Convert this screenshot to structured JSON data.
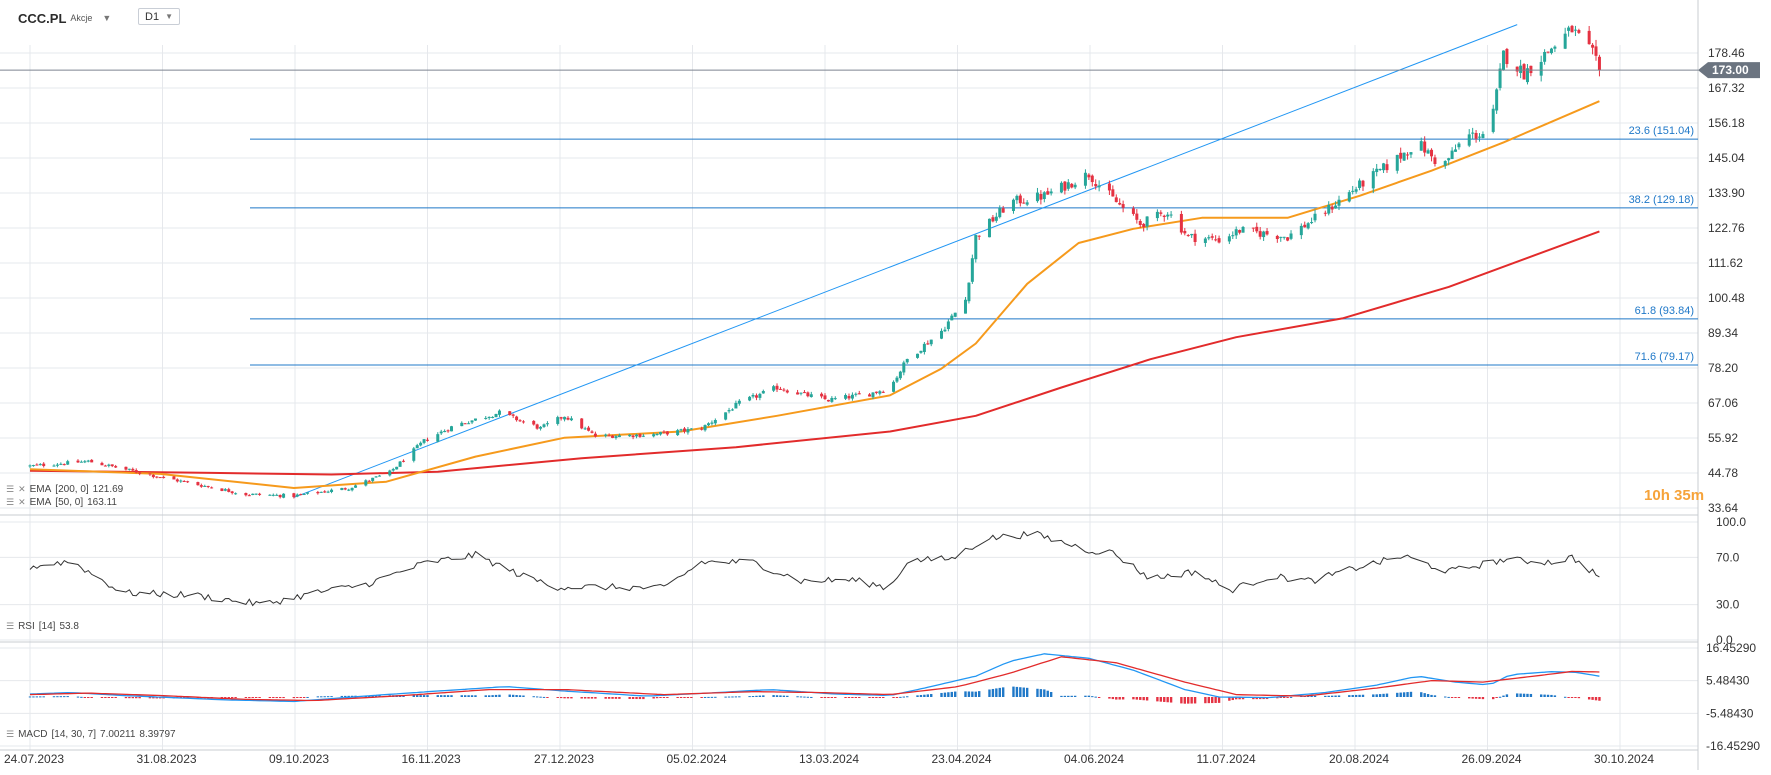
{
  "header": {
    "symbol": "CCC.PL",
    "instrument_type": "Akcje",
    "timeframe": "D1",
    "symbol_caret_icon": "chevron-down-icon",
    "timeframe_caret_icon": "chevron-down-icon"
  },
  "colors": {
    "up": "#26a69a",
    "down": "#e53242",
    "ema200": "#e22b2b",
    "ema50": "#f69a1c",
    "trendline": "#2196f3",
    "fib": "#1f78c8",
    "fib_label": "#1f78c8",
    "rsi": "#333333",
    "macd_line": "#2196f3",
    "signal_line": "#e22b2b",
    "hist_up": "#1f78c8",
    "hist_down": "#e53242",
    "price_tag_bg": "#6b7480",
    "grid": "#e6e8ec"
  },
  "countdown": {
    "hours": "10",
    "h_unit": "h",
    "minutes": "35",
    "m_unit": "m"
  },
  "chart_data": [
    {
      "type": "candlestick",
      "title": "CCC.PL",
      "x_tick_labels": [
        "24.07.2023",
        "31.08.2023",
        "09.10.2023",
        "16.11.2023",
        "27.12.2023",
        "05.02.2024",
        "13.03.2024",
        "23.04.2024",
        "04.06.2024",
        "11.07.2024",
        "20.08.2024",
        "26.09.2024",
        "30.10.2024"
      ],
      "y_tick_labels": [
        "178.46",
        "167.32",
        "156.18",
        "145.04",
        "133.90",
        "122.76",
        "111.62",
        "100.48",
        "89.34",
        "78.20",
        "67.06",
        "55.92",
        "44.78",
        "33.64"
      ],
      "ylim": [
        33.64,
        190
      ],
      "current_price": "173.00",
      "overlays": [
        {
          "name": "EMA",
          "params": "[200, 0]",
          "value": "121.69"
        },
        {
          "name": "EMA",
          "params": "[50, 0]",
          "value": "163.11"
        }
      ],
      "fibonacci": [
        {
          "label": "23.6 (151.04)",
          "price": 151.04
        },
        {
          "label": "38.2 (129.18)",
          "price": 129.18
        },
        {
          "label": "61.8 (93.84)",
          "price": 93.84
        },
        {
          "label": "71.6 (79.17)",
          "price": 79.17
        }
      ],
      "trendline": {
        "from": [
          "2023-10-09",
          37
        ],
        "to": [
          "2024-09-30",
          187.5
        ]
      },
      "price_keypoints": [
        [
          "2023-07-24",
          47
        ],
        [
          "2023-08-10",
          48.5
        ],
        [
          "2023-08-31",
          43.5
        ],
        [
          "2023-09-25",
          38
        ],
        [
          "2023-10-09",
          37.5
        ],
        [
          "2023-10-25",
          40
        ],
        [
          "2023-11-06",
          45
        ],
        [
          "2023-11-16",
          55
        ],
        [
          "2023-11-25",
          60
        ],
        [
          "2023-12-08",
          64
        ],
        [
          "2023-12-20",
          59
        ],
        [
          "2023-12-27",
          63
        ],
        [
          "2024-01-05",
          56.5
        ],
        [
          "2024-01-22",
          57
        ],
        [
          "2024-02-05",
          59
        ],
        [
          "2024-02-16",
          67
        ],
        [
          "2024-02-27",
          72
        ],
        [
          "2024-03-05",
          70
        ],
        [
          "2024-03-13",
          68
        ],
        [
          "2024-03-25",
          70
        ],
        [
          "2024-03-31",
          72
        ],
        [
          "2024-04-05",
          81
        ],
        [
          "2024-04-15",
          90
        ],
        [
          "2024-04-22",
          100
        ],
        [
          "2024-04-25",
          120
        ],
        [
          "2024-05-05",
          131
        ],
        [
          "2024-05-15",
          133
        ],
        [
          "2024-05-28",
          140
        ],
        [
          "2024-06-04",
          132
        ],
        [
          "2024-06-12",
          124
        ],
        [
          "2024-06-20",
          128
        ],
        [
          "2024-06-26",
          120
        ],
        [
          "2024-07-05",
          119
        ],
        [
          "2024-07-11",
          122
        ],
        [
          "2024-07-25",
          120
        ],
        [
          "2024-08-05",
          128
        ],
        [
          "2024-08-12",
          134
        ],
        [
          "2024-08-25",
          144
        ],
        [
          "2024-09-01",
          150
        ],
        [
          "2024-09-08",
          142
        ],
        [
          "2024-09-15",
          152
        ],
        [
          "2024-09-22",
          153
        ],
        [
          "2024-09-26",
          178
        ],
        [
          "2024-10-02",
          172
        ],
        [
          "2024-10-10",
          180
        ],
        [
          "2024-10-16",
          186
        ],
        [
          "2024-10-22",
          178
        ],
        [
          "2024-10-24",
          173
        ]
      ],
      "ema200_keypoints": [
        [
          "2023-07-24",
          45.5
        ],
        [
          "2023-09-15",
          44.8
        ],
        [
          "2023-10-20",
          44.3
        ],
        [
          "2023-11-20",
          45.2
        ],
        [
          "2024-01-01",
          49.5
        ],
        [
          "2024-02-15",
          53
        ],
        [
          "2024-03-31",
          58
        ],
        [
          "2024-04-25",
          63
        ],
        [
          "2024-05-20",
          72
        ],
        [
          "2024-06-15",
          81
        ],
        [
          "2024-07-10",
          88
        ],
        [
          "2024-08-10",
          94
        ],
        [
          "2024-09-10",
          104
        ],
        [
          "2024-10-24",
          121.69
        ]
      ],
      "ema50_keypoints": [
        [
          "2023-07-24",
          46
        ],
        [
          "2023-08-31",
          44.5
        ],
        [
          "2023-10-09",
          40
        ],
        [
          "2023-11-05",
          42
        ],
        [
          "2023-12-01",
          50
        ],
        [
          "2023-12-27",
          56
        ],
        [
          "2024-01-30",
          58
        ],
        [
          "2024-02-27",
          63
        ],
        [
          "2024-03-31",
          69.5
        ],
        [
          "2024-04-15",
          78
        ],
        [
          "2024-04-25",
          86
        ],
        [
          "2024-05-10",
          105
        ],
        [
          "2024-05-25",
          118
        ],
        [
          "2024-06-10",
          122.5
        ],
        [
          "2024-06-30",
          126
        ],
        [
          "2024-07-25",
          126
        ],
        [
          "2024-08-15",
          133
        ],
        [
          "2024-09-05",
          141
        ],
        [
          "2024-09-26",
          150
        ],
        [
          "2024-10-24",
          163.11
        ]
      ]
    },
    {
      "type": "line",
      "title": "RSI [14]",
      "name": "RSI",
      "params": "[14]",
      "value": "53.8",
      "y_tick_labels": [
        "100.0",
        "70.0",
        "30.0",
        "0.0"
      ],
      "ylim": [
        0,
        100
      ],
      "keypoints": [
        [
          "2023-07-24",
          62
        ],
        [
          "2023-08-05",
          67
        ],
        [
          "2023-08-20",
          40
        ],
        [
          "2023-09-10",
          38
        ],
        [
          "2023-09-30",
          30
        ],
        [
          "2023-10-15",
          40
        ],
        [
          "2023-10-30",
          47
        ],
        [
          "2023-11-16",
          65
        ],
        [
          "2023-12-01",
          72
        ],
        [
          "2023-12-15",
          54
        ],
        [
          "2023-12-25",
          45
        ],
        [
          "2024-01-05",
          45
        ],
        [
          "2024-01-25",
          44
        ],
        [
          "2024-02-05",
          66
        ],
        [
          "2024-02-20",
          66
        ],
        [
          "2024-03-05",
          50
        ],
        [
          "2024-03-20",
          51
        ],
        [
          "2024-03-31",
          44
        ],
        [
          "2024-04-05",
          67
        ],
        [
          "2024-04-18",
          69
        ],
        [
          "2024-04-28",
          86
        ],
        [
          "2024-05-12",
          90
        ],
        [
          "2024-05-28",
          76
        ],
        [
          "2024-06-04",
          74
        ],
        [
          "2024-06-15",
          52
        ],
        [
          "2024-06-28",
          58
        ],
        [
          "2024-07-08",
          42
        ],
        [
          "2024-07-20",
          54
        ],
        [
          "2024-08-01",
          50
        ],
        [
          "2024-08-15",
          62
        ],
        [
          "2024-08-28",
          71
        ],
        [
          "2024-09-10",
          58
        ],
        [
          "2024-09-26",
          68
        ],
        [
          "2024-10-10",
          66
        ],
        [
          "2024-10-16",
          70
        ],
        [
          "2024-10-24",
          53.8
        ]
      ]
    },
    {
      "type": "line",
      "title": "MACD [14, 30, 7]",
      "name": "MACD",
      "params": "[14, 30, 7]",
      "value": "7.00211",
      "signal_value": "8.39797",
      "y_tick_labels": [
        "16.45290",
        "5.48430",
        "-5.48430",
        "-16.45290"
      ],
      "ylim": [
        -16.4529,
        16.4529
      ],
      "macd_keypoints": [
        [
          "2023-07-24",
          1
        ],
        [
          "2023-08-05",
          1.5
        ],
        [
          "2023-08-20",
          0.5
        ],
        [
          "2023-09-20",
          -1
        ],
        [
          "2023-10-09",
          -1.5
        ],
        [
          "2023-11-01",
          0.5
        ],
        [
          "2023-11-20",
          2
        ],
        [
          "2023-12-10",
          3.5
        ],
        [
          "2023-12-27",
          2
        ],
        [
          "2024-01-20",
          0.3
        ],
        [
          "2024-02-10",
          1.5
        ],
        [
          "2024-02-25",
          2.5
        ],
        [
          "2024-03-15",
          1
        ],
        [
          "2024-03-31",
          0.5
        ],
        [
          "2024-04-10",
          3
        ],
        [
          "2024-04-25",
          7
        ],
        [
          "2024-05-05",
          12
        ],
        [
          "2024-05-15",
          14.5
        ],
        [
          "2024-05-28",
          13
        ],
        [
          "2024-06-10",
          9
        ],
        [
          "2024-06-25",
          2.5
        ],
        [
          "2024-07-05",
          0
        ],
        [
          "2024-07-20",
          -0.2
        ],
        [
          "2024-08-05",
          1.5
        ],
        [
          "2024-08-20",
          4
        ],
        [
          "2024-09-01",
          7
        ],
        [
          "2024-09-12",
          5
        ],
        [
          "2024-09-22",
          4
        ],
        [
          "2024-09-28",
          7.5
        ],
        [
          "2024-10-10",
          8.5
        ],
        [
          "2024-10-17",
          8.3
        ],
        [
          "2024-10-24",
          7.0
        ]
      ],
      "signal_keypoints": [
        [
          "2023-07-24",
          0.8
        ],
        [
          "2023-08-10",
          1.3
        ],
        [
          "2023-08-31",
          0.5
        ],
        [
          "2023-09-25",
          -0.8
        ],
        [
          "2023-10-15",
          -1.2
        ],
        [
          "2023-11-10",
          0.5
        ],
        [
          "2023-12-05",
          2.5
        ],
        [
          "2023-12-27",
          2.5
        ],
        [
          "2024-01-25",
          0.8
        ],
        [
          "2024-02-20",
          1.8
        ],
        [
          "2024-03-10",
          1.5
        ],
        [
          "2024-03-31",
          0.8
        ],
        [
          "2024-04-20",
          3.5
        ],
        [
          "2024-05-05",
          8
        ],
        [
          "2024-05-20",
          13.5
        ],
        [
          "2024-06-05",
          11.5
        ],
        [
          "2024-06-25",
          5
        ],
        [
          "2024-07-10",
          0.8
        ],
        [
          "2024-07-30",
          0.3
        ],
        [
          "2024-08-20",
          3
        ],
        [
          "2024-09-05",
          5.5
        ],
        [
          "2024-09-20",
          5
        ],
        [
          "2024-10-05",
          7
        ],
        [
          "2024-10-16",
          8.6
        ],
        [
          "2024-10-24",
          8.4
        ]
      ]
    }
  ]
}
